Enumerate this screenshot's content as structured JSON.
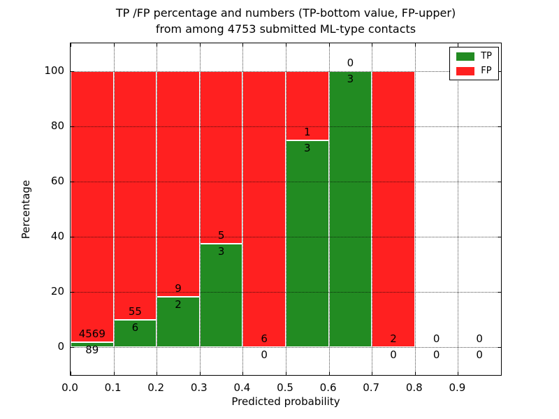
{
  "chart_data": {
    "type": "bar",
    "stacked": true,
    "title_line1": "TP /FP percentage and numbers (TP-bottom value, FP-upper)",
    "title_line2": "from among 4753 submitted ML-type contacts",
    "xlabel": "Predicted probability",
    "ylabel": "Percentage",
    "xlim": [
      0.0,
      1.0
    ],
    "ylim": [
      -10,
      110
    ],
    "xticks": [
      0.0,
      0.1,
      0.2,
      0.3,
      0.4,
      0.5,
      0.6,
      0.7,
      0.8,
      0.9
    ],
    "xtick_labels": [
      "0.0",
      "0.1",
      "0.2",
      "0.3",
      "0.4",
      "0.5",
      "0.6",
      "0.7",
      "0.8",
      "0.9"
    ],
    "yticks": [
      0,
      20,
      40,
      60,
      80,
      100
    ],
    "ytick_labels": [
      "0",
      "20",
      "40",
      "60",
      "80",
      "100"
    ],
    "grid": "dotted",
    "legend_position": "upper right",
    "legend": [
      {
        "label": "TP",
        "color": "#228b22"
      },
      {
        "label": "FP",
        "color": "#ff2020"
      }
    ],
    "total_contacts": 4753,
    "bins": [
      {
        "x0": 0.0,
        "x1": 0.1,
        "tp": 89,
        "fp": 4569,
        "tp_pct": 1.91
      },
      {
        "x0": 0.1,
        "x1": 0.2,
        "tp": 6,
        "fp": 55,
        "tp_pct": 9.84
      },
      {
        "x0": 0.2,
        "x1": 0.3,
        "tp": 2,
        "fp": 9,
        "tp_pct": 18.18
      },
      {
        "x0": 0.3,
        "x1": 0.4,
        "tp": 3,
        "fp": 5,
        "tp_pct": 37.5
      },
      {
        "x0": 0.4,
        "x1": 0.5,
        "tp": 0,
        "fp": 6,
        "tp_pct": 0
      },
      {
        "x0": 0.5,
        "x1": 0.6,
        "tp": 3,
        "fp": 1,
        "tp_pct": 75
      },
      {
        "x0": 0.6,
        "x1": 0.7,
        "tp": 3,
        "fp": 0,
        "tp_pct": 100
      },
      {
        "x0": 0.7,
        "x1": 0.8,
        "tp": 0,
        "fp": 2,
        "tp_pct": 0
      },
      {
        "x0": 0.8,
        "x1": 0.9,
        "tp": 0,
        "fp": 0,
        "tp_pct": null
      },
      {
        "x0": 0.9,
        "x1": 1.0,
        "tp": 0,
        "fp": 0,
        "tp_pct": null
      }
    ]
  }
}
